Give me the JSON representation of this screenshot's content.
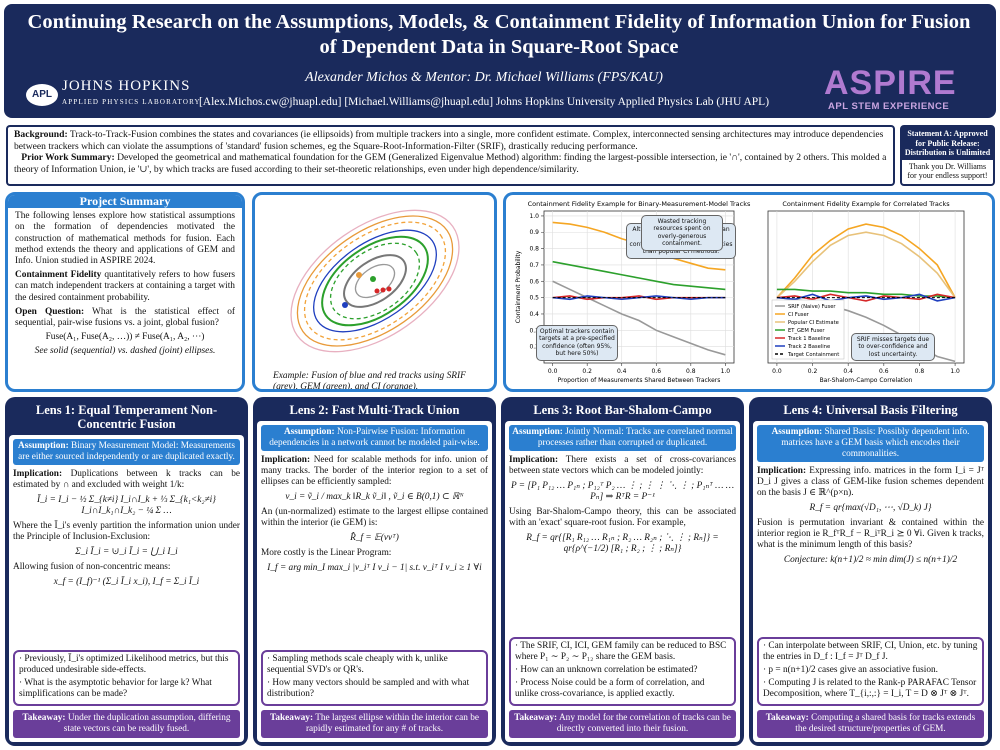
{
  "header": {
    "title": "Continuing Research on the Assumptions, Models, & Containment Fidelity of Information Union for Fusion of Dependent Data in Square-Root Space",
    "authors": "Alexander Michos & Mentor: Dr. Michael Williams (FPS/KAU)",
    "emails": "[Alex.Michos.cw@jhuapl.edu] [Michael.Williams@jhuapl.edu] Johns Hopkins University Applied Physics Lab (JHU APL)",
    "logo_apl": "APL",
    "logo_jhu": "JOHNS HOPKINS",
    "logo_jhu_sub": "APPLIED PHYSICS LABORATORY",
    "aspire": "ASPIRE",
    "aspire_sub": "APL STEM EXPERIENCE"
  },
  "background": {
    "label": "Background:",
    "text": "Track-to-Track-Fusion combines the states and covariances (ie ellipsoids) from multiple trackers into a single, more confident estimate. Complex, interconnected sensing architectures may introduce dependencies between trackers which can violate the assumptions of 'standard' fusion schemes, eg the Square-Root-Information-Filter (SRIF), drastically reducing performance.",
    "prior_label": "Prior Work Summary:",
    "prior": "Developed the geometrical and mathematical foundation for the GEM (Generalized Eigenvalue Method) algorithm: finding the largest-possible intersection, ie '∩', contained by 2 others. This molded a theory of Information Union, ie '∪', by which tracks are fused according to their set-theoretic relationships, even under high dependence/similarity."
  },
  "statement": {
    "title": "Statement A: Approved for Public Release: Distribution is Unlimited",
    "thanks": "Thank you Dr. Williams for your endless support!"
  },
  "summary": {
    "heading": "Project Summary",
    "p1": "The following lenses explore how statistical assumptions on the formation of dependencies motivated the construction of mathematical methods for fusion. Each method extends the theory and applications of GEM and Info. Union studied in ASPIRE 2024.",
    "p2_label": "Containment Fidelity",
    "p2": "quantitatively refers to how fusers can match independent trackers at containing a target with the desired containment probability.",
    "p3_label": "Open Question:",
    "p3": "What is the statistical effect of sequential, pair-wise fusions vs. a joint, global fusion?",
    "formula": "Fuse(A₁, Fuse(A₂, …)) ≠ Fuse(A₁, A₂, ⋯)",
    "note": "See solid (sequential) vs. dashed (joint) ellipses."
  },
  "figure": {
    "caption": "Example: Fusion of blue and red tracks using SRIF (grey), GEM (green), and CI (orange)."
  },
  "chart_data": [
    {
      "type": "line",
      "title": "Containment Fidelity Example for Binary-Measurement-Model Tracks",
      "x_label": "Proportion of Measurements Shared Between Trackers",
      "y_label": "Containment Probability",
      "x": [
        0,
        0.1,
        0.2,
        0.3,
        0.4,
        0.5,
        0.6,
        0.7,
        0.8,
        0.9,
        1
      ],
      "xlim": [
        -0.05,
        1.05
      ],
      "ylim": [
        0.1,
        1.03
      ],
      "xticks": [
        {
          "value": 0,
          "label": "0.0"
        },
        0.2,
        0.4,
        0.6,
        0.8,
        {
          "value": 1,
          "label": "1.0"
        }
      ],
      "yticks": [
        0.2,
        0.3,
        0.4,
        0.5,
        0.6,
        0.7,
        0.8,
        0.9,
        {
          "value": 1,
          "label": "1.0"
        }
      ],
      "grid": true,
      "annotations": [
        "Although imperfect, ET-GEM can perform closer to optimal containment across dependencies than popular CI methods.",
        "Optimal trackers contain targets at a pre-specified confidence (often 95%, but here 50%)"
      ],
      "series": [
        {
          "color": "#f5a623",
          "values": [
            0.96,
            0.95,
            0.93,
            0.9,
            0.86,
            0.83,
            0.78,
            0.74,
            0.71,
            0.68,
            0.67
          ]
        },
        {
          "color": "#2ca02c",
          "values": [
            0.72,
            0.7,
            0.68,
            0.66,
            0.64,
            0.62,
            0.6,
            0.58,
            0.57,
            0.56,
            0.55
          ]
        },
        {
          "color": "#999999",
          "values": [
            0.6,
            0.55,
            0.5,
            0.45,
            0.4,
            0.36,
            0.3,
            0.26,
            0.22,
            0.18,
            0.15
          ]
        },
        {
          "color": "#d62728",
          "values": [
            0.5,
            0.51,
            0.49,
            0.5,
            0.5,
            0.51,
            0.49,
            0.5,
            0.5,
            0.5,
            0.5
          ]
        },
        {
          "color": "#1f3fbf",
          "values": [
            0.5,
            0.49,
            0.51,
            0.5,
            0.49,
            0.5,
            0.51,
            0.5,
            0.49,
            0.5,
            0.5
          ]
        },
        {
          "color": "#000000",
          "dashed": true,
          "values": [
            0.5,
            0.5,
            0.5,
            0.5,
            0.5,
            0.5,
            0.5,
            0.5,
            0.5,
            0.5,
            0.5
          ]
        }
      ]
    },
    {
      "type": "line",
      "title": "Containment Fidelity Example for Correlated Tracks",
      "x_label": "Bar-Shalom-Campo Correlation",
      "x": [
        0,
        0.1,
        0.2,
        0.3,
        0.4,
        0.5,
        0.6,
        0.7,
        0.8,
        0.9,
        1
      ],
      "xlim": [
        -0.05,
        1.05
      ],
      "ylim": [
        0.1,
        1.03
      ],
      "xticks": [
        {
          "value": 0,
          "label": "0.0"
        },
        0.2,
        0.4,
        0.6,
        0.8,
        {
          "value": 1,
          "label": "1.0"
        }
      ],
      "grid": true,
      "legend": "lower left",
      "annotations": [
        "Wasted tracking resources spent on overly-generous containment.",
        "SRIF misses targets due to over-confidence and lost uncertainty."
      ],
      "series": [
        {
          "name": "SRIF (Naive) Fuser",
          "color": "#999999",
          "values": [
            0.5,
            0.49,
            0.47,
            0.45,
            0.42,
            0.38,
            0.33,
            0.27,
            0.2,
            0.14,
            0.11
          ]
        },
        {
          "name": "CI Fuser",
          "color": "#f5a623",
          "values": [
            0.5,
            0.62,
            0.76,
            0.85,
            0.92,
            0.95,
            0.93,
            0.88,
            0.8,
            0.7,
            0.5
          ]
        },
        {
          "name": "Popular CI Estimate",
          "color": "#e8c27a",
          "values": [
            0.5,
            0.6,
            0.72,
            0.82,
            0.88,
            0.9,
            0.88,
            0.83,
            0.75,
            0.65,
            0.5
          ]
        },
        {
          "name": "ET_GEM Fuser",
          "color": "#2ca02c",
          "values": [
            0.55,
            0.55,
            0.54,
            0.54,
            0.53,
            0.53,
            0.52,
            0.52,
            0.51,
            0.51,
            0.5
          ]
        },
        {
          "name": "Track 1 Baseline",
          "color": "#d62728",
          "values": [
            0.5,
            0.51,
            0.49,
            0.52,
            0.5,
            0.48,
            0.51,
            0.5,
            0.49,
            0.52,
            0.5
          ]
        },
        {
          "name": "Track 2 Baseline",
          "color": "#1f3fbf",
          "values": [
            0.5,
            0.49,
            0.52,
            0.48,
            0.5,
            0.51,
            0.49,
            0.5,
            0.52,
            0.48,
            0.5
          ]
        },
        {
          "name": "Target Containment",
          "color": "#000000",
          "dashed": true,
          "values": [
            0.5,
            0.5,
            0.5,
            0.5,
            0.5,
            0.5,
            0.5,
            0.5,
            0.5,
            0.5,
            0.5
          ]
        }
      ]
    }
  ],
  "lenses": [
    {
      "heading": "Lens 1: Equal Temperament Non-Concentric Fusion",
      "assumption_label": "Assumption:",
      "assumption": "Binary Measurement Model: Measurements are either sourced independently or are duplicated exactly.",
      "p1_label": "Implication:",
      "p1": "Duplications between k tracks can be estimated by ∩ and excluded with weight 1/k:",
      "eq1": "Ī_i = I_i − ½ Σ_{k≠i} I_i∩I_k + ⅓ Σ_{k₁<k₂≠i} I_i∩I_k₁∩I_k₂ − ¼ Σ …",
      "p2": "Where the Ī_i's evenly partition the information union under the Principle of Inclusion-Exclusion:",
      "eq2": "Σ_i Ī_i = ⊍_i Ī_i = ⋃_i I_i",
      "p3": "Allowing fusion of non-concentric means:",
      "eq3": "x_f = (I_f)⁻¹ (Σ_i Ī_i x_i), I_f = Σ_i Ī_i",
      "bullets": [
        "· Previously, Ī_i's optimized Likelihood metrics, but this produced undesirable side-effects.",
        "· What is the asymptotic behavior for large k? What simplifications can be made?"
      ],
      "takeaway_label": "Takeaway:",
      "takeaway": "Under the duplication assumption, differing state vectors can be readily fused."
    },
    {
      "heading": "Lens 2: Fast Multi-Track Union",
      "assumption_label": "Assumption:",
      "assumption": "Non-Pairwise Fusion: Information dependencies in a network cannot be modeled pair-wise.",
      "p1_label": "Implication:",
      "p1": "Need for scalable methods for info. union of many tracks. The border of the interior region to a set of ellipses can be efficiently sampled:",
      "eq1": "v_i = ṽ_i / max_k ‖R_k ṽ_i‖ , ṽ_i ∈ B(0,1) ⊂ ℝᴺ",
      "p2": "An (un-normalized) estimate to the largest ellipse contained within the interior (ie GEM) is:",
      "eq2": "R̂_f = 𝔼(vvᵀ)",
      "p3": "More costly is the Linear Program:",
      "eq3": "I_f = arg min_I max_i |v_iᵀ I v_i − 1| s.t. v_iᵀ I v_i ≥ 1 ∀i",
      "bullets": [
        "· Sampling methods scale cheaply with k, unlike sequential SVD's or QR's.",
        "· How many vectors should be sampled and with what distribution?"
      ],
      "takeaway_label": "Takeaway:",
      "takeaway": "The largest ellipse within the interior can be rapidly estimated for any # of tracks."
    },
    {
      "heading": "Lens 3: Root Bar-Shalom-Campo",
      "assumption_label": "Assumption:",
      "assumption": "Jointly Normal: Tracks are correlated normal processes rather than corrupted or duplicated.",
      "p1_label": "Implication:",
      "p1": "There exists a set of cross-covariances between state vectors which can be modeled jointly:",
      "eq1": "P = [P₁ P₁₂ … P₁ₙ ; P₁₂ᵀ P₂ … ⋮ ; ⋮ ⋮ ⋱ ⋮ ; P₁ₙᵀ … … Pₙ] ⇒ RᵀR = P⁻¹",
      "p2": "Using Bar-Shalom-Campo theory, this can be associated with an 'exact' square-root fusion. For example,",
      "eq2": "R_f = qr{[R₁ R₁₂ … R₁ₙ ; R₂ … R₂ₙ ; ⋱ ⋮ ; Rₙ]} = qr{ρ^(−1/2) [R₁ ; R₂ ; ⋮ ; Rₙ]}",
      "p3": "",
      "eq3": "",
      "bullets": [
        "· The SRIF, CI, ICI, GEM family can be reduced to BSC where P₁ ∼ P₂ ∼ P₁₂ share the GEM basis.",
        "· How can an unknown correlation be estimated?",
        "· Process Noise could be a form of correlation, and unlike cross-covariance, is applied exactly."
      ],
      "takeaway_label": "Takeaway:",
      "takeaway": "Any model for the correlation of tracks can be directly converted into their fusion."
    },
    {
      "heading": "Lens 4: Universal Basis Filtering",
      "assumption_label": "Assumption:",
      "assumption": "Shared Basis: Possibly dependent info. matrices have a GEM basis which encodes their commonalities.",
      "p1_label": "Implication:",
      "p1": "Expressing info. matrices in the form I_i = Jᵀ D_i J gives a class of GEM-like fusion schemes dependent on the basis J ∈ ℝ^(p×n).",
      "eq1": "R_f = qr{max(√D₁, ⋯, √D_k) J}",
      "p2": "Fusion is permutation invariant & contained within the interior region ie R_fᵀR_f − R_iᵀR_i ⪰ 0 ∀i. Given k tracks, what is the minimum length of this basis?",
      "eq2": "Conjecture: k(n+1)/2 ≈ min dim(J) ≤ n(n+1)/2",
      "p3": "",
      "eq3": "",
      "bullets": [
        "· Can interpolate between SRIF, CI, Union, etc. by tuning the entries in D_f : I_f = Jᵀ D_f J.",
        "· p = n(n+1)/2 cases give an associative fusion.",
        "· Computing J is related to the Rank-p PARAFAC Tensor Decomposition, where T_{i,:,:} = I_i, T = D ⊗ Jᵀ ⊗ Jᵀ."
      ],
      "takeaway_label": "Takeaway:",
      "takeaway": "Computing a shared basis for tracks extends the desired structure/properties of GEM."
    }
  ]
}
